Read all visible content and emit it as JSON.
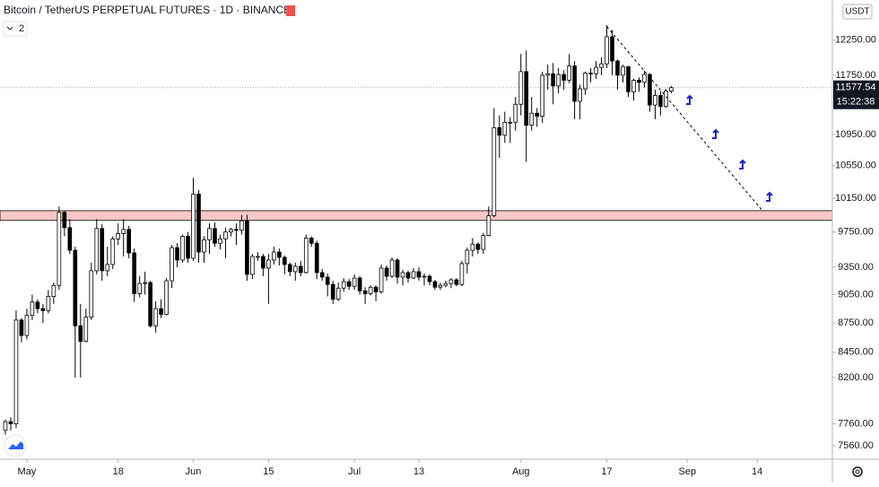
{
  "chart_data": {
    "type": "candlestick",
    "title": "Bitcoin / TetherUS PERPETUAL FUTURES · 1D · BINANCE",
    "indicator_count": "2",
    "currency": "USDT",
    "countdown": "15:22:38",
    "log_scale": true,
    "grid": false,
    "up_color": "#ffffff",
    "down_color": "#000000",
    "border_color": "#000000",
    "x": [
      "04-27",
      "04-28",
      "04-29",
      "04-30",
      "05-01",
      "05-02",
      "05-03",
      "05-04",
      "05-05",
      "05-06",
      "05-07",
      "05-08",
      "05-09",
      "05-10",
      "05-11",
      "05-12",
      "05-13",
      "05-14",
      "05-15",
      "05-16",
      "05-17",
      "05-18",
      "05-19",
      "05-20",
      "05-21",
      "05-22",
      "05-23",
      "05-24",
      "05-25",
      "05-26",
      "05-27",
      "05-28",
      "05-29",
      "05-30",
      "05-31",
      "06-01",
      "06-02",
      "06-03",
      "06-04",
      "06-05",
      "06-06",
      "06-07",
      "06-08",
      "06-09",
      "06-10",
      "06-11",
      "06-12",
      "06-13",
      "06-14",
      "06-15",
      "06-16",
      "06-17",
      "06-18",
      "06-19",
      "06-20",
      "06-21",
      "06-22",
      "06-23",
      "06-24",
      "06-25",
      "06-26",
      "06-27",
      "06-28",
      "06-29",
      "06-30",
      "07-01",
      "07-02",
      "07-03",
      "07-04",
      "07-05",
      "07-06",
      "07-07",
      "07-08",
      "07-09",
      "07-10",
      "07-11",
      "07-12",
      "07-13",
      "07-14",
      "07-15",
      "07-16",
      "07-17",
      "07-18",
      "07-19",
      "07-20",
      "07-21",
      "07-22",
      "07-23",
      "07-24",
      "07-25",
      "07-26",
      "07-27",
      "07-28",
      "07-29",
      "07-30",
      "07-31",
      "08-01",
      "08-02",
      "08-03",
      "08-04",
      "08-05",
      "08-06",
      "08-07",
      "08-08",
      "08-09",
      "08-10",
      "08-11",
      "08-12",
      "08-13",
      "08-14",
      "08-15",
      "08-16",
      "08-17",
      "08-18",
      "08-19",
      "08-20",
      "08-21",
      "08-22",
      "08-23",
      "08-24",
      "08-25",
      "08-26",
      "08-27",
      "08-28",
      "08-29"
    ],
    "open": [
      7700,
      7780,
      7760,
      8780,
      8620,
      8830,
      8970,
      8900,
      8880,
      9030,
      9150,
      9980,
      9800,
      9540,
      8720,
      8560,
      8810,
      9310,
      9790,
      9310,
      9380,
      9670,
      9730,
      9780,
      9510,
      9060,
      9170,
      9180,
      8720,
      8900,
      8840,
      9200,
      9570,
      9430,
      9700,
      9450,
      10200,
      9520,
      9660,
      9790,
      9620,
      9670,
      9750,
      9780,
      9770,
      9880,
      9270,
      9470,
      9470,
      9340,
      9430,
      9520,
      9460,
      9380,
      9300,
      9360,
      9290,
      9680,
      9620,
      9290,
      9240,
      9160,
      9000,
      9120,
      9190,
      9140,
      9230,
      9090,
      9060,
      9130,
      9080,
      9340,
      9250,
      9430,
      9240,
      9290,
      9230,
      9300,
      9240,
      9250,
      9190,
      9130,
      9150,
      9170,
      9210,
      9160,
      9390,
      9540,
      9610,
      9550,
      9710,
      9940,
      11040,
      10940,
      11110,
      11110,
      11350,
      11800,
      11070,
      11230,
      11190,
      11750,
      11770,
      11600,
      11760,
      11680,
      11880,
      11390,
      11560,
      11780,
      11770,
      11860,
      11910,
      12300,
      11950,
      11750,
      11870,
      11520,
      11680,
      11650,
      11760,
      11340,
      11470,
      11320,
      11530
    ],
    "high": [
      7800,
      7820,
      8880,
      8800,
      8900,
      9050,
      9000,
      8950,
      9100,
      9180,
      10050,
      10000,
      9900,
      9580,
      8950,
      8900,
      9400,
      9900,
      9840,
      9580,
      9700,
      9850,
      9900,
      9820,
      9560,
      9250,
      9300,
      9200,
      8980,
      9000,
      9230,
      9600,
      9620,
      9720,
      9750,
      10400,
      10250,
      9700,
      9850,
      9860,
      9720,
      9800,
      9800,
      9850,
      9950,
      9950,
      9500,
      9520,
      9500,
      9500,
      9580,
      9560,
      9480,
      9400,
      9400,
      9420,
      9720,
      9700,
      9650,
      9330,
      9280,
      9200,
      9180,
      9230,
      9220,
      9270,
      9250,
      9130,
      9150,
      9150,
      9380,
      9370,
      9460,
      9450,
      9320,
      9310,
      9340,
      9350,
      9280,
      9270,
      9210,
      9180,
      9200,
      9230,
      9230,
      9420,
      9570,
      9680,
      9630,
      9740,
      10050,
      11300,
      11200,
      11250,
      11180,
      11450,
      12050,
      12100,
      11450,
      11300,
      11800,
      11900,
      11920,
      11850,
      11820,
      12050,
      11950,
      11620,
      11800,
      11850,
      11950,
      12000,
      12470,
      12400,
      11970,
      11900,
      11880,
      11700,
      11720,
      11810,
      11780,
      11550,
      11530,
      11560,
      11600
    ],
    "low": [
      7660,
      7700,
      7720,
      8550,
      8580,
      8780,
      8850,
      8750,
      8850,
      8950,
      9100,
      9700,
      9500,
      8200,
      8200,
      8550,
      8780,
      9270,
      9200,
      9250,
      9330,
      9600,
      9470,
      9450,
      8970,
      9020,
      9050,
      8700,
      8650,
      8800,
      8830,
      9120,
      9350,
      9400,
      9400,
      9420,
      9400,
      9400,
      9500,
      9580,
      9550,
      9450,
      9700,
      9600,
      9720,
      9200,
      9220,
      9420,
      9250,
      8950,
      9380,
      9370,
      9270,
      9250,
      9200,
      9250,
      9280,
      9580,
      9220,
      9200,
      9030,
      8950,
      8980,
      9080,
      9100,
      9100,
      9050,
      8950,
      9040,
      8980,
      9060,
      9200,
      9230,
      9170,
      9150,
      9180,
      9220,
      9200,
      9150,
      9150,
      9100,
      9100,
      9130,
      9120,
      9140,
      9140,
      9280,
      9470,
      9500,
      9500,
      9700,
      9920,
      10650,
      10840,
      10840,
      11000,
      11200,
      10600,
      11000,
      11050,
      11100,
      11550,
      11350,
      11500,
      11550,
      11640,
      11150,
      11150,
      11480,
      11650,
      11700,
      11750,
      11850,
      11750,
      11550,
      11650,
      11450,
      11400,
      11520,
      11580,
      11250,
      11150,
      11200,
      11300,
      11500
    ],
    "close": [
      7780,
      7760,
      8780,
      8620,
      8830,
      8970,
      8900,
      8880,
      9030,
      9150,
      9980,
      9800,
      9540,
      8720,
      8560,
      8810,
      9310,
      9790,
      9310,
      9380,
      9670,
      9730,
      9780,
      9510,
      9060,
      9170,
      9180,
      8720,
      8900,
      8840,
      9200,
      9570,
      9430,
      9700,
      9450,
      10200,
      9520,
      9660,
      9790,
      9620,
      9670,
      9750,
      9780,
      9770,
      9880,
      9270,
      9470,
      9470,
      9340,
      9430,
      9520,
      9460,
      9380,
      9300,
      9360,
      9290,
      9680,
      9620,
      9290,
      9240,
      9160,
      9000,
      9120,
      9190,
      9140,
      9230,
      9090,
      9060,
      9130,
      9080,
      9340,
      9250,
      9430,
      9240,
      9290,
      9230,
      9300,
      9240,
      9250,
      9190,
      9130,
      9150,
      9170,
      9210,
      9160,
      9390,
      9540,
      9610,
      9550,
      9710,
      9940,
      11040,
      10940,
      11110,
      11110,
      11350,
      11800,
      11070,
      11230,
      11190,
      11750,
      11770,
      11600,
      11760,
      11680,
      11880,
      11390,
      11560,
      11780,
      11770,
      11860,
      11910,
      12300,
      11950,
      11750,
      11870,
      11520,
      11680,
      11650,
      11760,
      11340,
      11470,
      11320,
      11530,
      11577.54
    ],
    "xlim": [
      "04-26",
      "09-28"
    ],
    "xticks": [
      {
        "value": "05-01",
        "label": "May"
      },
      {
        "value": "05-18",
        "label": "18"
      },
      {
        "value": "06-01",
        "label": "Jun"
      },
      {
        "value": "06-15",
        "label": "15"
      },
      {
        "value": "07-01",
        "label": "Jul"
      },
      {
        "value": "07-13",
        "label": "13"
      },
      {
        "value": "08-01",
        "label": "Aug"
      },
      {
        "value": "08-17",
        "label": "17"
      },
      {
        "value": "09-01",
        "label": "Sep"
      },
      {
        "value": "09-14",
        "label": "14"
      }
    ],
    "ylim": [
      7440,
      12850
    ],
    "yticks": [
      {
        "value": 7560,
        "label": "7560.00"
      },
      {
        "value": 7760,
        "label": "7760.00"
      },
      {
        "value": 8200,
        "label": "8200.00"
      },
      {
        "value": 8450,
        "label": "8450.00"
      },
      {
        "value": 8750,
        "label": "8750.00"
      },
      {
        "value": 9050,
        "label": "9050.00"
      },
      {
        "value": 9350,
        "label": "9350.00"
      },
      {
        "value": 9750,
        "label": "9750.00"
      },
      {
        "value": 10150,
        "label": "10150.00"
      },
      {
        "value": 10550,
        "label": "10550.00"
      },
      {
        "value": 10950,
        "label": "10950.00"
      },
      {
        "value": 11750,
        "label": "11750.00"
      },
      {
        "value": 12250,
        "label": "12250.00"
      }
    ],
    "zone": {
      "color": "#f8c8c8",
      "range": [
        9885,
        10000
      ]
    },
    "trendline": {
      "x": [
        "08-17",
        "09-15"
      ],
      "y": [
        12450,
        10000
      ]
    }
  }
}
